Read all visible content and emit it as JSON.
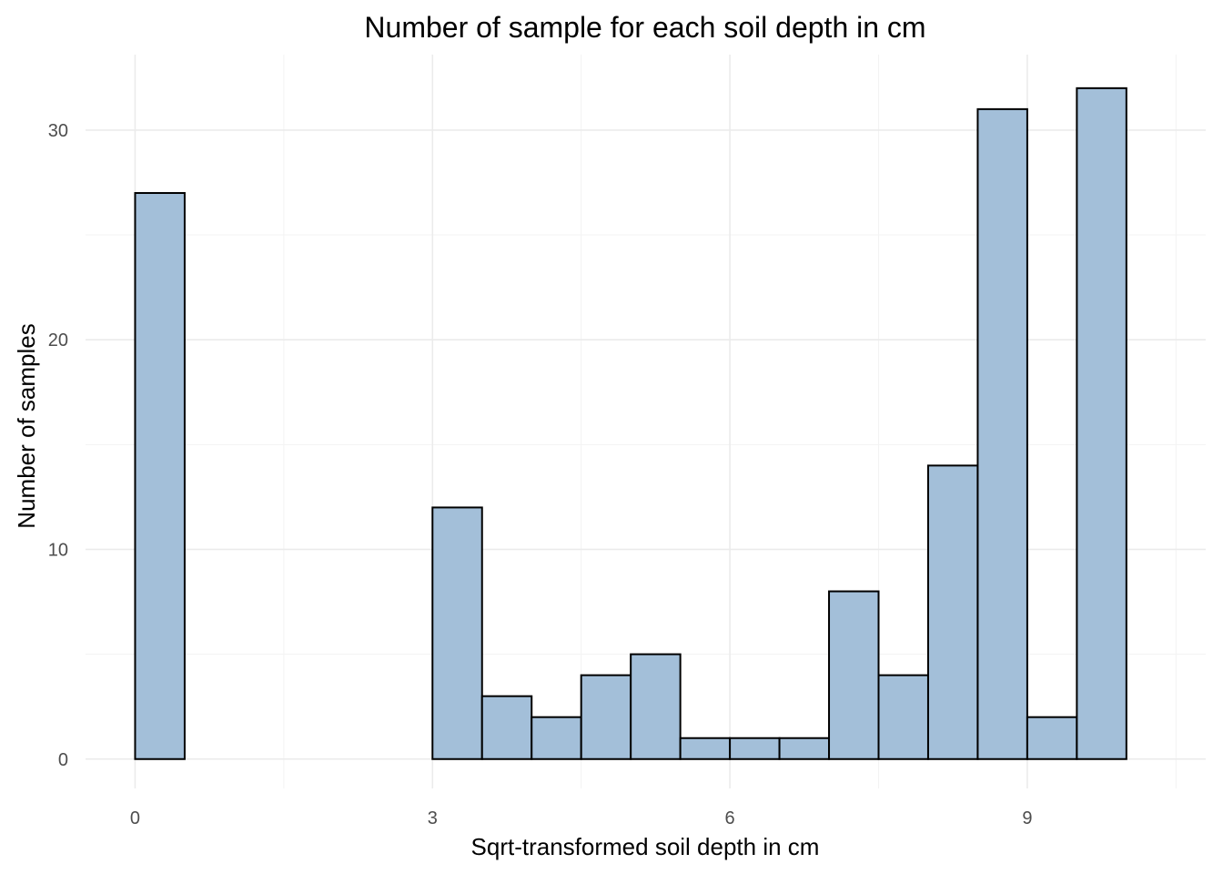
{
  "chart_data": {
    "type": "bar",
    "subtype": "histogram",
    "title": "Number of sample for each soil depth in cm",
    "xlabel": "Sqrt-transformed soil depth in cm",
    "ylabel": "Number of samples",
    "bin_width": 0.5,
    "bins": [
      {
        "x0": 0.0,
        "x1": 0.5,
        "count": 27
      },
      {
        "x0": 0.5,
        "x1": 1.0,
        "count": 0
      },
      {
        "x0": 1.0,
        "x1": 1.5,
        "count": 0
      },
      {
        "x0": 1.5,
        "x1": 2.0,
        "count": 0
      },
      {
        "x0": 2.0,
        "x1": 2.5,
        "count": 0
      },
      {
        "x0": 2.5,
        "x1": 3.0,
        "count": 0
      },
      {
        "x0": 3.0,
        "x1": 3.5,
        "count": 12
      },
      {
        "x0": 3.5,
        "x1": 4.0,
        "count": 3
      },
      {
        "x0": 4.0,
        "x1": 4.5,
        "count": 2
      },
      {
        "x0": 4.5,
        "x1": 5.0,
        "count": 4
      },
      {
        "x0": 5.0,
        "x1": 5.5,
        "count": 5
      },
      {
        "x0": 5.5,
        "x1": 6.0,
        "count": 1
      },
      {
        "x0": 6.0,
        "x1": 6.5,
        "count": 1
      },
      {
        "x0": 6.5,
        "x1": 7.0,
        "count": 1
      },
      {
        "x0": 7.0,
        "x1": 7.5,
        "count": 8
      },
      {
        "x0": 7.5,
        "x1": 8.0,
        "count": 4
      },
      {
        "x0": 8.0,
        "x1": 8.5,
        "count": 14
      },
      {
        "x0": 8.5,
        "x1": 9.0,
        "count": 31
      },
      {
        "x0": 9.0,
        "x1": 9.5,
        "count": 2
      },
      {
        "x0": 9.5,
        "x1": 10.0,
        "count": 32
      }
    ],
    "xlim": [
      -0.5,
      10.8
    ],
    "ylim": [
      -1.4,
      33.6
    ],
    "x_ticks": [
      0,
      3,
      6,
      9
    ],
    "x_minor_ticks": [
      1.5,
      4.5,
      7.5,
      10.5
    ],
    "y_ticks": [
      0,
      10,
      20,
      30
    ],
    "y_minor_ticks": [
      5,
      15,
      25
    ],
    "grid": true,
    "legend": "none",
    "colors": {
      "bar_fill": "#a3bfd9",
      "bar_outline": "#000000",
      "grid_major": "#ebebeb",
      "grid_minor": "#f3f3f3",
      "tick_text": "#4d4d4d",
      "text": "#000000"
    }
  }
}
